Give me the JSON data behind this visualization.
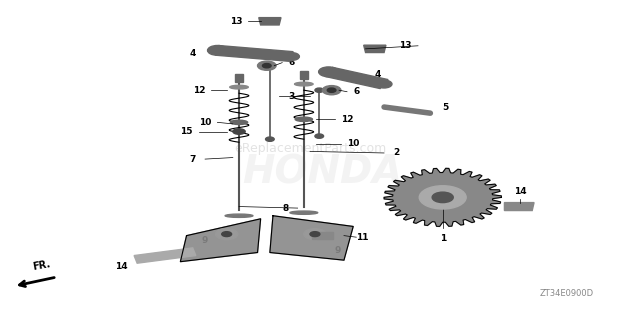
{
  "bg_color": "#ffffff",
  "watermark_text": "eReplacementParts.com",
  "watermark_color": "#cccccc",
  "honda_text": "HONDA",
  "honda_color": "#dddddd",
  "diagram_code": "ZT34E0900D",
  "fr_label": "FR.",
  "title": ""
}
